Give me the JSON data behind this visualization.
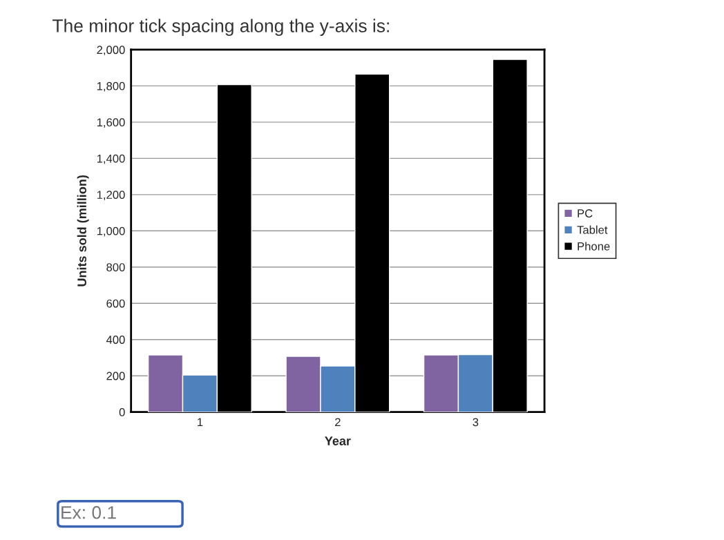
{
  "chart_data": {
    "type": "bar",
    "title": "The minor tick spacing along the y-axis is:",
    "xlabel": "Year",
    "ylabel": "Units sold (million)",
    "categories": [
      "1",
      "2",
      "3"
    ],
    "series": [
      {
        "name": "PC",
        "color": "#8064a2",
        "values": [
          315,
          307,
          315
        ]
      },
      {
        "name": "Tablet",
        "color": "#4f81bd",
        "values": [
          204,
          254,
          317
        ]
      },
      {
        "name": "Phone",
        "color": "#000000",
        "values": [
          1807,
          1865,
          1946
        ]
      }
    ],
    "ylim": [
      0,
      2000
    ],
    "yticks": [
      {
        "value": 0,
        "label": "0"
      },
      {
        "value": 200,
        "label": "200"
      },
      {
        "value": 400,
        "label": "400"
      },
      {
        "value": 600,
        "label": "600"
      },
      {
        "value": 800,
        "label": "800"
      },
      {
        "value": 1000,
        "label": "1,000"
      },
      {
        "value": 1200,
        "label": "1,200"
      },
      {
        "value": 1400,
        "label": "1,400"
      },
      {
        "value": 1600,
        "label": "1,600"
      },
      {
        "value": 1800,
        "label": "1,800"
      },
      {
        "value": 2000,
        "label": "2,000"
      }
    ],
    "grid": "y",
    "legend": "right",
    "annotations": [
      "Ex: 0.1"
    ]
  }
}
